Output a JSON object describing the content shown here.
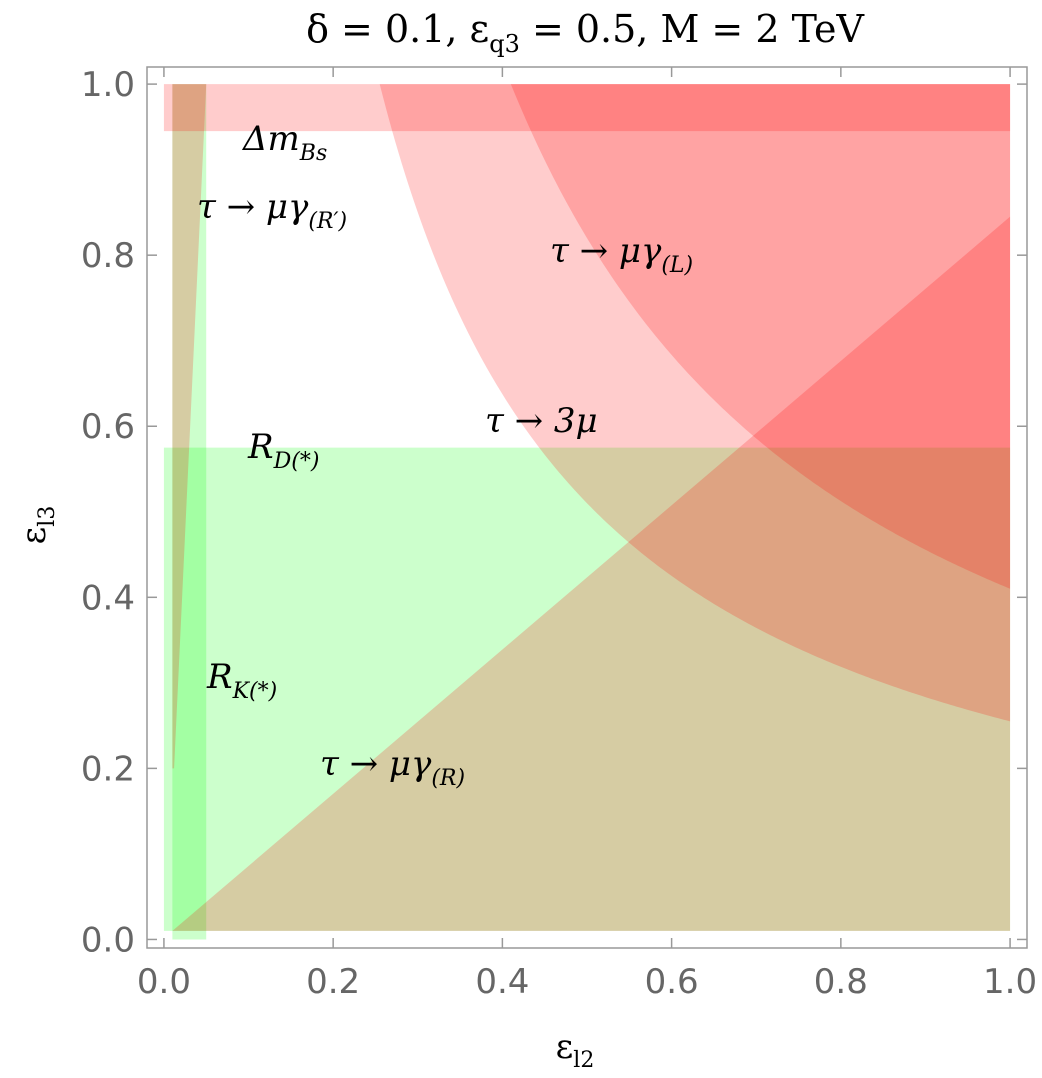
{
  "chart_data": {
    "type": "region",
    "title": "δ = 0.1,  ε",
    "title_sub": "q3",
    "title_rest": " = 0.5,  M = 2 TeV",
    "xlabel": "ε",
    "xlabel_sub": "l2",
    "ylabel": "ε",
    "ylabel_sub": "l3",
    "xlim": [
      -0.02,
      1.02
    ],
    "ylim": [
      -0.01,
      1.02
    ],
    "xticks": [
      {
        "value": 0,
        "label": "0.0"
      },
      {
        "value": 0.2,
        "label": "0.2"
      },
      {
        "value": 0.4,
        "label": "0.4"
      },
      {
        "value": 0.6,
        "label": "0.6"
      },
      {
        "value": 0.8,
        "label": "0.8"
      },
      {
        "value": 1,
        "label": "1.0"
      }
    ],
    "yticks": [
      {
        "value": 0,
        "label": "0.0"
      },
      {
        "value": 0.2,
        "label": "0.2"
      },
      {
        "value": 0.4,
        "label": "0.4"
      },
      {
        "value": 0.6,
        "label": "0.6"
      },
      {
        "value": 0.8,
        "label": "0.8"
      },
      {
        "value": 1,
        "label": "1.0"
      }
    ],
    "regions": [
      {
        "label": "R",
        "sub": "D(*)",
        "color": "#00ff00",
        "x": [
          0,
          1,
          1,
          0
        ],
        "y": [
          0.01,
          0.01,
          0.575,
          0.575
        ]
      },
      {
        "label": "R",
        "sub": "K(*)",
        "color": "#00ff00",
        "x": [
          0.01,
          0.05,
          0.05,
          0.01
        ],
        "y": [
          0,
          0,
          1,
          1
        ]
      },
      {
        "label": "Δm",
        "sub": "Bs",
        "color": "#ff0000",
        "x": [
          0,
          1,
          1,
          0
        ],
        "y": [
          0.945,
          0.945,
          1,
          1
        ]
      },
      {
        "label": "τ → μγ",
        "sub": "(R′)",
        "color": "#ff0000",
        "x": [
          0.01,
          0.012,
          0.05,
          0.01
        ],
        "y": [
          0.2,
          0.2,
          1,
          1
        ]
      },
      {
        "label": "τ → μγ",
        "sub": "(R)",
        "color": "#ff0000",
        "x": [
          0.01,
          1,
          1
        ],
        "y": [
          0.01,
          0.01,
          0.845
        ]
      },
      {
        "label": "τ → 3μ",
        "color": "#ff0000",
        "xy_min": 0.255
      },
      {
        "label": "τ → μγ",
        "sub": "(L)",
        "color": "#ff0000",
        "xy_min": 0.41
      }
    ]
  }
}
